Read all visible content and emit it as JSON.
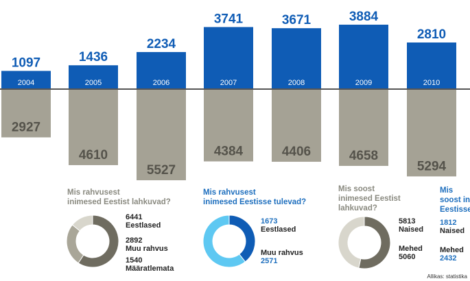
{
  "chart_data": {
    "type": "bar",
    "categories": [
      "2004",
      "2005",
      "2006",
      "2007",
      "2008",
      "2009",
      "2010"
    ],
    "series": [
      {
        "values": [
          1097,
          1436,
          2234,
          3741,
          3671,
          3884,
          2810
        ],
        "color": "#0f5cb5"
      },
      {
        "values": [
          2927,
          4610,
          5527,
          4384,
          4406,
          4658,
          5294
        ],
        "color": "#a5a295"
      }
    ],
    "baseline_color": "#555555"
  },
  "donuts": [
    {
      "title": "Mis rahvusest\ninimesed Eestist lahkuvad?",
      "segments": [
        {
          "value": "6441",
          "label": "Eestlased",
          "color": "#6f6c60"
        },
        {
          "value": "2892",
          "label": "Muu rahvus",
          "color": "#a9a698"
        },
        {
          "value": "1540",
          "label": "Määratlemata",
          "color": "#d8d6cc"
        }
      ]
    },
    {
      "title": "Mis rahvusest\ninimesed Eestisse tulevad?",
      "segments": [
        {
          "value": "1673",
          "label": "Eestlased",
          "color": "#0f5cb5"
        },
        {
          "value": "2571",
          "label": "Muu rahvus",
          "color": "#5ec8f2"
        }
      ]
    },
    {
      "title": "Mis soost\ninimesed Eestist\nlahkuvad?",
      "segments": [
        {
          "value": "5813",
          "label": "Naised",
          "color": "#6f6c60"
        },
        {
          "value": "5060",
          "label": "Mehed",
          "color": "#d8d6cc"
        }
      ]
    },
    {
      "title": "Mis\nsoost ini\nEestisse",
      "segments": [
        {
          "value": "1812",
          "label": "Naised"
        },
        {
          "value": "2432",
          "label": "Mehed"
        }
      ]
    }
  ],
  "source": "Allikas: statistika"
}
